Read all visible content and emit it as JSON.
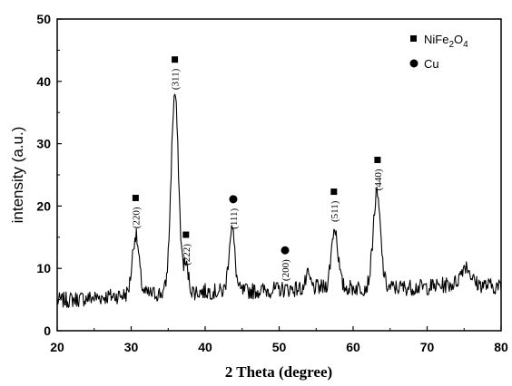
{
  "chart_data": {
    "type": "line",
    "xlabel": "2 Theta (degree)",
    "ylabel": "intensity (a.u.)",
    "xlim": [
      20,
      80
    ],
    "ylim": [
      0,
      50
    ],
    "x_ticks": [
      "20",
      "30",
      "40",
      "50",
      "60",
      "70",
      "80"
    ],
    "y_ticks": [
      "0",
      "10",
      "20",
      "30",
      "40",
      "50"
    ],
    "grid": false,
    "legend_position": "top-right",
    "legend": [
      {
        "marker": "square",
        "label_main": "NiFe",
        "sub1": "2",
        "mid": "O",
        "sub2": "4"
      },
      {
        "marker": "circle",
        "label": "Cu"
      }
    ],
    "line_color": "#000000",
    "baseline": {
      "x": [
        20,
        25,
        30,
        35,
        40,
        45,
        50,
        55,
        60,
        65,
        70,
        75,
        80
      ],
      "y": [
        4.8,
        5.3,
        5.8,
        6.0,
        6.3,
        6.3,
        6.6,
        6.9,
        6.9,
        6.9,
        7.0,
        7.7,
        7.0
      ]
    },
    "peaks": [
      {
        "x": 30.6,
        "y": 15.3,
        "width": 0.45
      },
      {
        "x": 35.9,
        "y": 38.0,
        "width": 0.5
      },
      {
        "x": 37.4,
        "y": 10.3,
        "width": 0.35
      },
      {
        "x": 43.6,
        "y": 16.5,
        "width": 0.4
      },
      {
        "x": 53.9,
        "y": 8.8,
        "width": 0.3
      },
      {
        "x": 57.5,
        "y": 16.5,
        "width": 0.45
      },
      {
        "x": 63.2,
        "y": 21.8,
        "width": 0.5
      },
      {
        "x": 75.2,
        "y": 10.5,
        "width": 0.6
      }
    ],
    "markers": [
      {
        "type": "square",
        "x": 30.6,
        "y": 21.3,
        "hkl": "(220)"
      },
      {
        "type": "square",
        "x": 35.9,
        "y": 43.5,
        "hkl": "(311)"
      },
      {
        "type": "square",
        "x": 37.4,
        "y": 15.4,
        "hkl": "(222)"
      },
      {
        "type": "circle",
        "x": 43.8,
        "y": 21.1,
        "hkl": "(111)"
      },
      {
        "type": "circle",
        "x": 50.8,
        "y": 12.9,
        "hkl": "(200)"
      },
      {
        "type": "square",
        "x": 57.4,
        "y": 22.3,
        "hkl": "(511)"
      },
      {
        "type": "square",
        "x": 63.3,
        "y": 27.4,
        "hkl": "(440)"
      }
    ]
  }
}
